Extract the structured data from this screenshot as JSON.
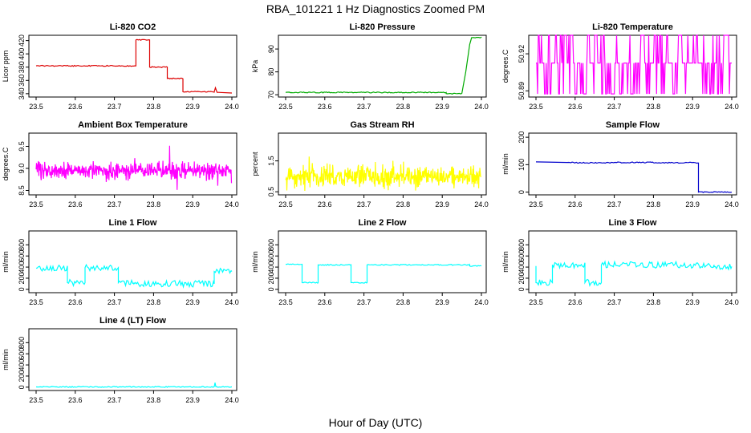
{
  "figure": {
    "title": "RBA_101221  1 Hz Diagnostics Zoomed PM",
    "xlabel": "Hour of Day (UTC)"
  },
  "chart_data": [
    {
      "type": "line",
      "title": "Li-820 CO2",
      "ylabel": "Licor ppm",
      "color": "#dd0000",
      "xlim": [
        23.5,
        24.0
      ],
      "xticks": [
        "23.5",
        "23.6",
        "23.7",
        "23.8",
        "23.9",
        "24.0"
      ],
      "ylim": [
        335,
        428
      ],
      "yticks": [
        "340",
        "360",
        "380",
        "400",
        "420"
      ],
      "ytick_values": [
        340,
        360,
        380,
        400,
        420
      ],
      "series": [
        {
          "x": [
            23.5,
            23.755,
            23.755,
            23.79,
            23.79,
            23.835,
            23.835,
            23.875,
            23.875,
            23.955,
            23.958,
            23.962,
            23.965,
            24.0
          ],
          "y": [
            382,
            382,
            421,
            421,
            380,
            380,
            363,
            363,
            343,
            343,
            349,
            342,
            342,
            341
          ]
        }
      ]
    },
    {
      "type": "line",
      "title": "Li-820 Pressure",
      "ylabel": "kPa",
      "color": "#00aa00",
      "xlim": [
        23.5,
        24.0
      ],
      "xticks": [
        "23.5",
        "23.6",
        "23.7",
        "23.8",
        "23.9",
        "24.0"
      ],
      "ylim": [
        69,
        96
      ],
      "yticks": [
        "70",
        "80",
        "90"
      ],
      "ytick_values": [
        70,
        80,
        90
      ],
      "series": [
        {
          "x": [
            23.5,
            23.91,
            23.91,
            23.95,
            23.96,
            23.97,
            23.975,
            24.0
          ],
          "y": [
            71,
            71,
            70.5,
            70.5,
            80,
            92,
            95,
            95
          ]
        }
      ]
    },
    {
      "type": "line",
      "title": "Li-820 Temperature",
      "ylabel": "degrees.C",
      "color": "#ff00ff",
      "xlim": [
        23.5,
        24.0
      ],
      "xticks": [
        "23.5",
        "23.6",
        "23.7",
        "23.8",
        "23.9",
        "24.0"
      ],
      "ylim": [
        50.885,
        50.935
      ],
      "yticks": [
        "50.89",
        "50.92"
      ],
      "ytick_values": [
        50.89,
        50.92
      ],
      "levels": [
        50.8875,
        50.9125,
        50.935
      ],
      "series": [
        {
          "x_step": 0.002,
          "pattern": "toggle"
        }
      ]
    },
    {
      "type": "line",
      "title": "Ambient Box Temperature",
      "ylabel": "degrees.C",
      "color": "#ff00ff",
      "xlim": [
        23.5,
        24.0
      ],
      "xticks": [
        "23.5",
        "23.6",
        "23.7",
        "23.8",
        "23.9",
        "24.0"
      ],
      "ylim": [
        8.4,
        9.8
      ],
      "yticks": [
        "8.5",
        "9.0",
        "9.5"
      ],
      "ytick_values": [
        8.5,
        9.0,
        9.5
      ],
      "series": [
        {
          "mean": 8.95,
          "spread": 0.55,
          "x_step": 0.001
        }
      ]
    },
    {
      "type": "line",
      "title": "Gas Stream RH",
      "ylabel": "percent",
      "color": "#ffff00",
      "xlim": [
        23.5,
        24.0
      ],
      "xticks": [
        "23.5",
        "23.6",
        "23.7",
        "23.8",
        "23.9",
        "24.0"
      ],
      "ylim": [
        0.4,
        2.4
      ],
      "yticks": [
        "0.5",
        "1.5"
      ],
      "ytick_values": [
        0.5,
        1.5
      ],
      "series": [
        {
          "mean": 1.0,
          "spread": 1.0,
          "x_step": 0.001
        }
      ]
    },
    {
      "type": "line",
      "title": "Sample Flow",
      "ylabel": "ml/min",
      "color": "#0000cc",
      "xlim": [
        23.5,
        24.0
      ],
      "xticks": [
        "23.5",
        "23.6",
        "23.7",
        "23.8",
        "23.9",
        "24.0"
      ],
      "ylim": [
        -10,
        215
      ],
      "yticks": [
        "0",
        "100",
        "200"
      ],
      "ytick_values": [
        0,
        100,
        200
      ],
      "series": [
        {
          "x": [
            23.5,
            23.58,
            23.6,
            23.7,
            23.8,
            23.915,
            23.915,
            24.0
          ],
          "y": [
            110,
            108,
            107,
            108,
            107,
            106,
            0,
            0
          ]
        }
      ]
    },
    {
      "type": "line",
      "title": "Line 1 Flow",
      "ylabel": "ml/min",
      "color": "#00ffff",
      "xlim": [
        23.5,
        24.0
      ],
      "xticks": [
        "23.5",
        "23.6",
        "23.7",
        "23.8",
        "23.9",
        "24.0"
      ],
      "ylim": [
        -60,
        1050
      ],
      "yticks": [
        "0",
        "200",
        "400",
        "600",
        "800"
      ],
      "ytick_values": [
        0,
        200,
        400,
        600,
        800
      ],
      "series": [
        {
          "x": [
            23.5,
            23.58,
            23.58,
            23.625,
            23.625,
            23.71,
            23.71,
            23.75,
            23.75,
            23.955,
            23.955,
            24.0
          ],
          "y": [
            380,
            380,
            120,
            120,
            390,
            390,
            120,
            120,
            100,
            100,
            320,
            320
          ]
        }
      ]
    },
    {
      "type": "line",
      "title": "Line 2 Flow",
      "ylabel": "ml/min",
      "color": "#00ffff",
      "xlim": [
        23.5,
        24.0
      ],
      "xticks": [
        "23.5",
        "23.6",
        "23.7",
        "23.8",
        "23.9",
        "24.0"
      ],
      "ylim": [
        -60,
        1050
      ],
      "yticks": [
        "0",
        "200",
        "400",
        "600",
        "800"
      ],
      "ytick_values": [
        0,
        200,
        400,
        600,
        800
      ],
      "series": [
        {
          "x": [
            23.5,
            23.542,
            23.542,
            23.583,
            23.583,
            23.667,
            23.667,
            23.708,
            23.708,
            23.97,
            23.97,
            24.0
          ],
          "y": [
            450,
            450,
            120,
            120,
            440,
            440,
            120,
            120,
            440,
            440,
            420,
            420
          ]
        }
      ]
    },
    {
      "type": "line",
      "title": "Line 3 Flow",
      "ylabel": "ml/min",
      "color": "#00ffff",
      "xlim": [
        23.5,
        24.0
      ],
      "xticks": [
        "23.5",
        "23.6",
        "23.7",
        "23.8",
        "23.9",
        "24.0"
      ],
      "ylim": [
        -60,
        1050
      ],
      "yticks": [
        "0",
        "200",
        "400",
        "600",
        "800"
      ],
      "ytick_values": [
        0,
        200,
        400,
        600,
        800
      ],
      "series": [
        {
          "x": [
            23.5,
            23.5,
            23.542,
            23.542,
            23.625,
            23.625,
            23.667,
            23.667,
            23.955,
            23.955,
            24.0
          ],
          "y": [
            420,
            120,
            120,
            440,
            440,
            120,
            120,
            440,
            440,
            410,
            410
          ]
        }
      ]
    },
    {
      "type": "line",
      "title": "Line 4 (LT) Flow",
      "ylabel": "ml/min",
      "color": "#00ffff",
      "xlim": [
        23.5,
        24.0
      ],
      "xticks": [
        "23.5",
        "23.6",
        "23.7",
        "23.8",
        "23.9",
        "24.0"
      ],
      "ylim": [
        -60,
        1050
      ],
      "yticks": [
        "0",
        "200",
        "400",
        "600",
        "800"
      ],
      "ytick_values": [
        0,
        200,
        400,
        600,
        800
      ],
      "series": [
        {
          "x": [
            23.5,
            23.955,
            23.957,
            23.959,
            23.962,
            24.0
          ],
          "y": [
            5,
            5,
            80,
            10,
            5,
            5
          ]
        }
      ]
    }
  ]
}
